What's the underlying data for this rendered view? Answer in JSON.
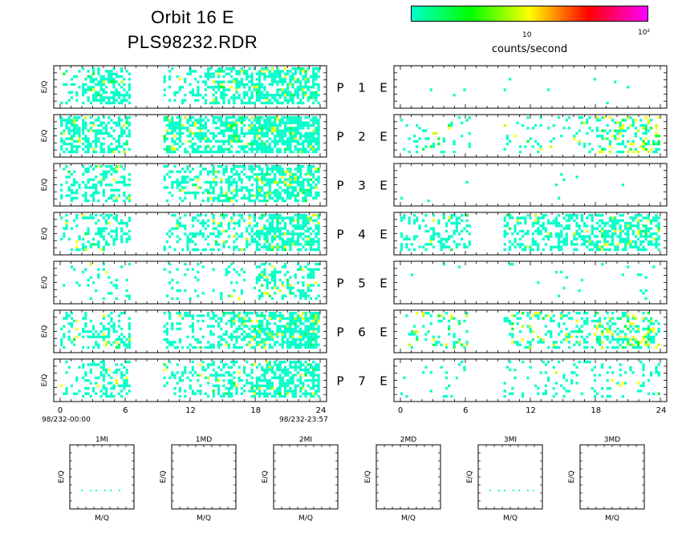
{
  "title": "Orbit 16 E",
  "filename": "PLS98232.RDR",
  "colorbar": {
    "unit_label": "counts/second",
    "tick_labels": [
      "10",
      "10²"
    ],
    "colors": [
      "#00ffcc",
      "#00ff00",
      "#ffff00",
      "#ff0000",
      "#ff00ff"
    ]
  },
  "chart_data": [
    {
      "type": "heatmap",
      "panel_set": "left",
      "ylabel": "E/Q",
      "x_ticks": [
        "0",
        "6",
        "12",
        "18",
        "24"
      ],
      "xlim": [
        0,
        24
      ],
      "start_label": "98/232-00:00",
      "end_label": "98/232-23:57",
      "panels": [
        {
          "name": "P",
          "number": "1",
          "suffix": "E",
          "density": [
            0.25,
            0.45,
            0.0,
            0.3,
            0.55,
            0.65
          ],
          "intensity": [
            0.05,
            0.05,
            0.0,
            0.05,
            0.08,
            0.1
          ]
        },
        {
          "name": "P",
          "number": "2",
          "suffix": "E",
          "density": [
            0.55,
            0.5,
            0.0,
            0.55,
            0.6,
            0.75
          ],
          "intensity": [
            0.08,
            0.08,
            0.0,
            0.08,
            0.1,
            0.12
          ]
        },
        {
          "name": "P",
          "number": "3",
          "suffix": "E",
          "density": [
            0.35,
            0.4,
            0.0,
            0.35,
            0.45,
            0.65
          ],
          "intensity": [
            0.05,
            0.05,
            0.0,
            0.05,
            0.08,
            0.15
          ]
        },
        {
          "name": "P",
          "number": "4",
          "suffix": "E",
          "density": [
            0.2,
            0.35,
            0.0,
            0.25,
            0.35,
            0.65
          ],
          "intensity": [
            0.05,
            0.05,
            0.0,
            0.05,
            0.08,
            0.12
          ]
        },
        {
          "name": "P",
          "number": "5",
          "suffix": "E",
          "density": [
            0.05,
            0.12,
            0.0,
            0.1,
            0.15,
            0.35
          ],
          "intensity": [
            0.02,
            0.02,
            0.0,
            0.02,
            0.05,
            0.08
          ]
        },
        {
          "name": "P",
          "number": "6",
          "suffix": "E",
          "density": [
            0.25,
            0.35,
            0.0,
            0.3,
            0.45,
            0.7
          ],
          "intensity": [
            0.05,
            0.05,
            0.0,
            0.05,
            0.08,
            0.12
          ]
        },
        {
          "name": "P",
          "number": "7",
          "suffix": "E",
          "density": [
            0.15,
            0.4,
            0.0,
            0.25,
            0.4,
            0.6
          ],
          "intensity": [
            0.05,
            0.05,
            0.0,
            0.05,
            0.08,
            0.1
          ]
        }
      ]
    },
    {
      "type": "heatmap",
      "panel_set": "right",
      "x_ticks": [
        "0",
        "6",
        "12",
        "18",
        "24"
      ],
      "xlim": [
        0,
        24
      ],
      "panels": [
        {
          "number": "1",
          "density": [
            0.005,
            0.01,
            0.0,
            0.01,
            0.01,
            0.01
          ],
          "intensity": [
            0,
            0,
            0,
            0,
            0,
            0
          ]
        },
        {
          "number": "2",
          "density": [
            0.1,
            0.15,
            0.0,
            0.15,
            0.1,
            0.35
          ],
          "intensity": [
            0.3,
            0.3,
            0.0,
            0.3,
            0.2,
            0.4
          ]
        },
        {
          "number": "3",
          "density": [
            0.002,
            0.005,
            0.0,
            0.005,
            0.01,
            0.005
          ],
          "intensity": [
            0,
            0,
            0,
            0,
            0,
            0
          ]
        },
        {
          "number": "4",
          "density": [
            0.3,
            0.3,
            0.0,
            0.4,
            0.4,
            0.55
          ],
          "intensity": [
            0.05,
            0.1,
            0.0,
            0.05,
            0.05,
            0.1
          ]
        },
        {
          "number": "5",
          "density": [
            0.005,
            0.02,
            0.0,
            0.01,
            0.01,
            0.03
          ],
          "intensity": [
            0,
            0,
            0,
            0,
            0,
            0
          ]
        },
        {
          "number": "6",
          "density": [
            0.1,
            0.2,
            0.0,
            0.25,
            0.25,
            0.4
          ],
          "intensity": [
            0.2,
            0.3,
            0.0,
            0.25,
            0.1,
            0.35
          ]
        },
        {
          "number": "7",
          "density": [
            0.05,
            0.08,
            0.0,
            0.1,
            0.15,
            0.15
          ],
          "intensity": [
            0.02,
            0.02,
            0.0,
            0.02,
            0.02,
            0.05
          ]
        }
      ]
    },
    {
      "type": "heatmap",
      "panel_set": "mass",
      "xlabel": "M/Q",
      "ylabel": "E/Q",
      "panels": [
        {
          "title": "1MI",
          "dots": 6
        },
        {
          "title": "1MD",
          "dots": 0
        },
        {
          "title": "2MI",
          "dots": 0
        },
        {
          "title": "2MD",
          "dots": 0
        },
        {
          "title": "3MI",
          "dots": 7
        },
        {
          "title": "3MD",
          "dots": 0
        }
      ]
    }
  ]
}
